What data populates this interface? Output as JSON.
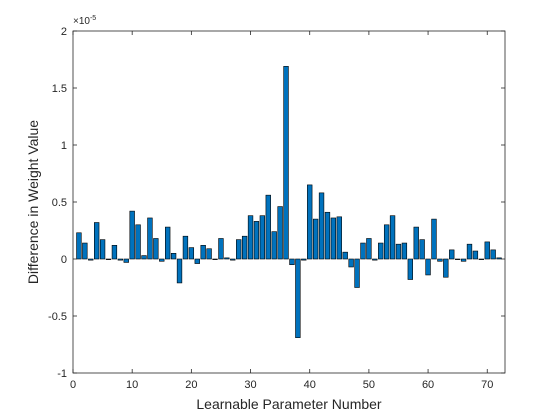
{
  "chart_data": {
    "type": "bar",
    "xlabel": "Learnable Parameter Number",
    "ylabel": "Difference in Weight Value",
    "exponent_label": "×10",
    "exponent_power": "-5",
    "xlim": [
      0,
      73
    ],
    "ylim": [
      -1,
      2
    ],
    "xticks": [
      0,
      10,
      20,
      30,
      40,
      50,
      60,
      70
    ],
    "yticks": [
      -1,
      -0.5,
      0,
      0.5,
      1,
      1.5,
      2
    ],
    "ytick_labels": [
      "-1",
      "-0.5",
      "0",
      "0.5",
      "1",
      "1.5",
      "2"
    ],
    "bar_color": "#0072BD",
    "edge_color": "#000000",
    "grid": false,
    "x": [
      1,
      2,
      3,
      4,
      5,
      6,
      7,
      8,
      9,
      10,
      11,
      12,
      13,
      14,
      15,
      16,
      17,
      18,
      19,
      20,
      21,
      22,
      23,
      24,
      25,
      26,
      27,
      28,
      29,
      30,
      31,
      32,
      33,
      34,
      35,
      36,
      37,
      38,
      39,
      40,
      41,
      42,
      43,
      44,
      45,
      46,
      47,
      48,
      49,
      50,
      51,
      52,
      53,
      54,
      55,
      56,
      57,
      58,
      59,
      60,
      61,
      62,
      63,
      64,
      65,
      66,
      67,
      68,
      69,
      70,
      71,
      72
    ],
    "values": [
      0.23,
      0.14,
      -0.01,
      0.32,
      0.17,
      0.0,
      0.12,
      -0.01,
      -0.03,
      0.42,
      0.3,
      0.03,
      0.36,
      0.18,
      -0.02,
      0.28,
      0.05,
      -0.21,
      0.2,
      0.1,
      -0.04,
      0.12,
      0.09,
      0.0,
      0.18,
      0.01,
      -0.01,
      0.17,
      0.2,
      0.38,
      0.33,
      0.38,
      0.56,
      0.24,
      0.46,
      1.69,
      -0.05,
      -0.69,
      -0.01,
      0.65,
      0.35,
      0.58,
      0.41,
      0.36,
      0.37,
      0.06,
      -0.07,
      -0.25,
      0.14,
      0.18,
      -0.01,
      0.14,
      0.3,
      0.38,
      0.13,
      0.14,
      -0.18,
      0.28,
      0.17,
      -0.14,
      0.35,
      -0.02,
      -0.16,
      0.08,
      0.0,
      -0.02,
      0.13,
      0.07,
      0.0,
      0.15,
      0.08,
      0.01
    ]
  }
}
